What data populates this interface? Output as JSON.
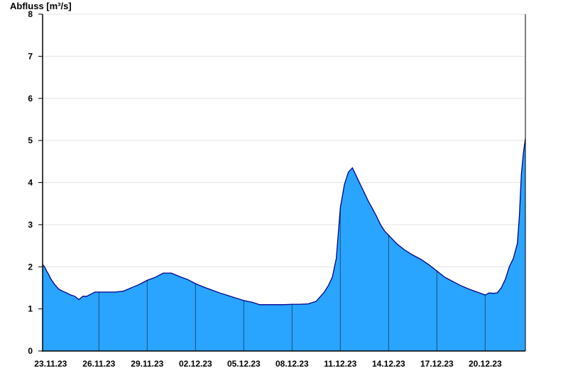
{
  "chart_data": {
    "type": "area",
    "title": "",
    "xlabel": "",
    "ylabel": "Abfluss [m³/s]",
    "ylim": [
      0,
      8
    ],
    "yticks": [
      0,
      1,
      2,
      3,
      4,
      5,
      6,
      7,
      8
    ],
    "xlim": [
      "22.11.23 12:00",
      "22.12.23 12:00"
    ],
    "xticks": [
      "23.11.23",
      "26.11.23",
      "29.11.23",
      "02.12.23",
      "05.12.23",
      "08.12.23",
      "11.12.23",
      "14.12.23",
      "17.12.23",
      "20.12.23"
    ],
    "grid": "horizontal",
    "colors": {
      "fill": "#2aa5ff",
      "line": "#00008b",
      "axis": "#000000",
      "grid": "#e4e4e4",
      "tick_line": "#1a4f7a"
    },
    "series": [
      {
        "x": [
          "22.11.23 12:00",
          "22.11.23 15:00",
          "22.11.23 18:00",
          "22.11.23 21:00",
          "23.11.23 00:00",
          "23.11.23 06:00",
          "23.11.23 12:00",
          "23.11.23 18:00",
          "24.11.23 00:00",
          "24.11.23 06:00",
          "24.11.23 12:00",
          "24.11.23 18:00",
          "25.11.23 00:00",
          "25.11.23 06:00",
          "25.11.23 12:00",
          "25.11.23 18:00",
          "26.11.23 00:00",
          "26.11.23 12:00",
          "27.11.23 00:00",
          "27.11.23 12:00",
          "28.11.23 00:00",
          "28.11.23 12:00",
          "29.11.23 00:00",
          "29.11.23 12:00",
          "30.11.23 00:00",
          "30.11.23 12:00",
          "01.12.23 00:00",
          "01.12.23 12:00",
          "02.12.23 00:00",
          "02.12.23 12:00",
          "03.12.23 00:00",
          "03.12.23 12:00",
          "04.12.23 00:00",
          "04.12.23 12:00",
          "05.12.23 00:00",
          "05.12.23 12:00",
          "06.12.23 00:00",
          "06.12.23 12:00",
          "07.12.23 00:00",
          "07.12.23 12:00",
          "08.12.23 00:00",
          "08.12.23 12:00",
          "09.12.23 00:00",
          "09.12.23 12:00",
          "10.12.23 00:00",
          "10.12.23 06:00",
          "10.12.23 12:00",
          "10.12.23 18:00",
          "11.12.23 00:00",
          "11.12.23 06:00",
          "11.12.23 12:00",
          "11.12.23 18:00",
          "12.12.23 00:00",
          "12.12.23 06:00",
          "12.12.23 12:00",
          "12.12.23 18:00",
          "13.12.23 00:00",
          "13.12.23 06:00",
          "13.12.23 12:00",
          "13.12.23 18:00",
          "14.12.23 00:00",
          "14.12.23 12:00",
          "15.12.23 00:00",
          "15.12.23 12:00",
          "16.12.23 00:00",
          "16.12.23 12:00",
          "17.12.23 00:00",
          "17.12.23 12:00",
          "18.12.23 00:00",
          "18.12.23 12:00",
          "19.12.23 00:00",
          "19.12.23 12:00",
          "20.12.23 00:00",
          "20.12.23 06:00",
          "20.12.23 12:00",
          "20.12.23 18:00",
          "21.12.23 00:00",
          "21.12.23 06:00",
          "21.12.23 12:00",
          "21.12.23 18:00",
          "22.12.23 00:00",
          "22.12.23 03:00",
          "22.12.23 06:00",
          "22.12.23 09:00",
          "22.12.23 12:00"
        ],
        "values": [
          2.05,
          2.0,
          1.9,
          1.82,
          1.72,
          1.58,
          1.47,
          1.42,
          1.38,
          1.33,
          1.3,
          1.22,
          1.3,
          1.3,
          1.35,
          1.4,
          1.4,
          1.4,
          1.4,
          1.42,
          1.5,
          1.58,
          1.68,
          1.75,
          1.85,
          1.85,
          1.77,
          1.7,
          1.6,
          1.52,
          1.45,
          1.38,
          1.32,
          1.26,
          1.2,
          1.16,
          1.1,
          1.1,
          1.1,
          1.1,
          1.11,
          1.11,
          1.12,
          1.18,
          1.4,
          1.55,
          1.75,
          2.2,
          3.4,
          3.95,
          4.25,
          4.35,
          4.15,
          3.95,
          3.75,
          3.55,
          3.38,
          3.2,
          3.0,
          2.85,
          2.75,
          2.55,
          2.4,
          2.28,
          2.18,
          2.05,
          1.9,
          1.75,
          1.65,
          1.55,
          1.47,
          1.4,
          1.33,
          1.38,
          1.37,
          1.38,
          1.5,
          1.7,
          2.0,
          2.2,
          2.55,
          3.2,
          4.2,
          4.7,
          5.05
        ]
      }
    ]
  }
}
